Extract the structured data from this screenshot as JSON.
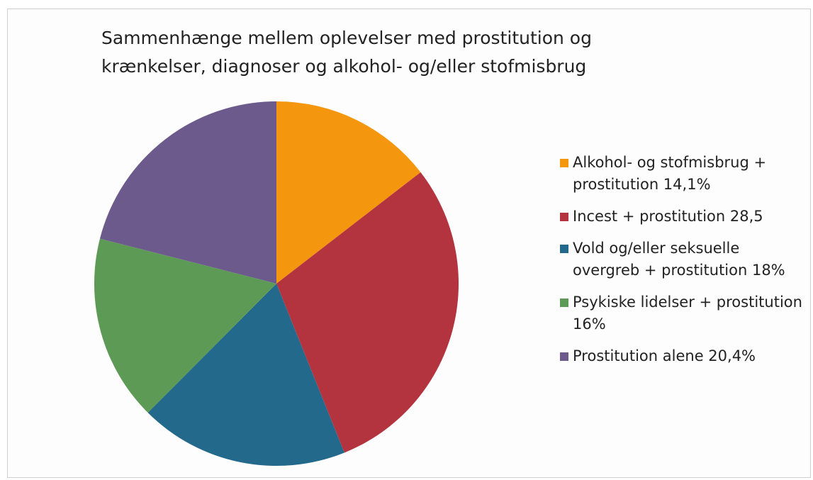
{
  "chart_data": {
    "type": "pie",
    "title": "Sammenhænge mellem oplevelser med prostitution og krænkelser, diagnoser og alkohol- og/eller stofmisbrug",
    "categories": [
      "Alkohol- og stofmisbrug + prostitution 14,1%",
      "Incest + prostitution 28,5",
      "Vold og/eller seksuelle overgreb + prostitution 18%",
      "Psykiske lidelser + prostitution 16%",
      "Prostitution alene 20,4%"
    ],
    "values": [
      14.1,
      28.5,
      18,
      16,
      20.4
    ],
    "colors": [
      "#f5960f",
      "#b3343f",
      "#22698c",
      "#5d9a55",
      "#6c5a8c"
    ]
  }
}
